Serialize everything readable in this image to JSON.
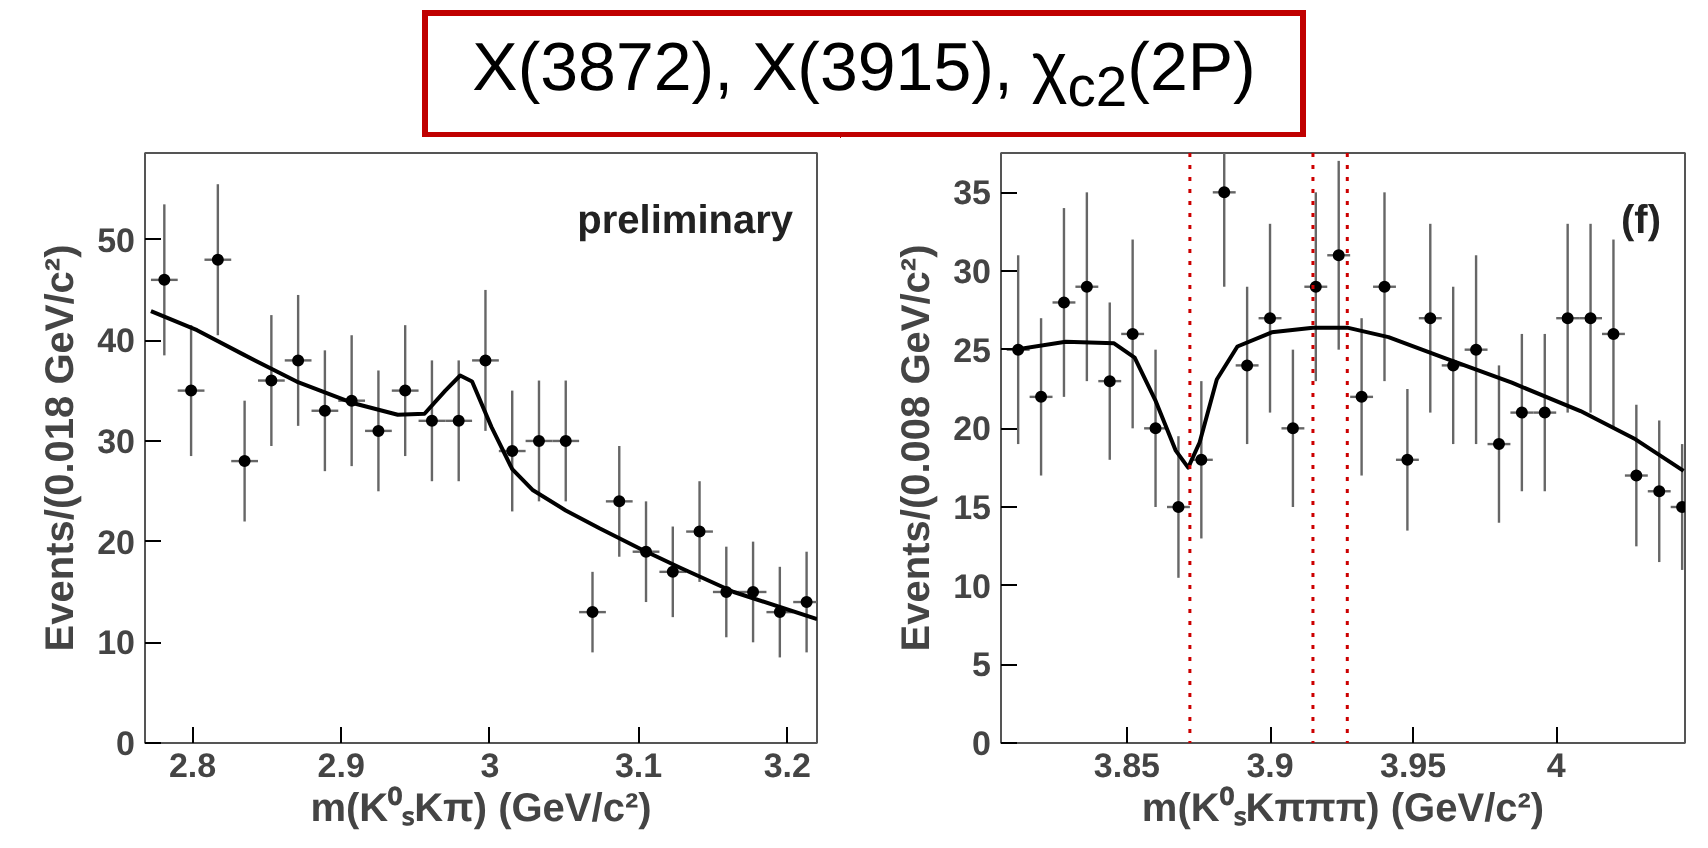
{
  "chart_data": [
    {
      "type": "scatter",
      "title": "X(3872), X(3915), χ$_{c2}$(2P)",
      "xlabel": "m(K⁰ₛKπ) (GeV/c²)",
      "ylabel": "Events/(0.018 GeV/c²)",
      "annotations": [
        "preliminary"
      ],
      "xlim": [
        2.768,
        3.22
      ],
      "ylim": [
        0,
        58.6
      ],
      "xticks": [
        2.8,
        2.9,
        3,
        3.1,
        3.2
      ],
      "yticks": [
        0,
        10,
        20,
        30,
        40,
        50
      ],
      "grid": false,
      "series": [
        {
          "marker": "circle",
          "color": "#000000",
          "x": [
            2.781,
            2.799,
            2.817,
            2.835,
            2.853,
            2.871,
            2.889,
            2.907,
            2.925,
            2.943,
            2.961,
            2.979,
            2.997,
            3.015,
            3.033,
            3.051,
            3.069,
            3.087,
            3.105,
            3.123,
            3.141,
            3.159,
            3.177,
            3.195,
            3.213
          ],
          "values": [
            46,
            35,
            48,
            28,
            36,
            38,
            33,
            34,
            31,
            35,
            32,
            32,
            38,
            29,
            30,
            30,
            13,
            24,
            19,
            17,
            21,
            15,
            15,
            13,
            14
          ],
          "errors": [
            7.5,
            6.5,
            7.5,
            6,
            6.5,
            6.5,
            6,
            6.5,
            6,
            6.5,
            6,
            6,
            7,
            6,
            6,
            6,
            4,
            5.5,
            5,
            4.5,
            5,
            4.5,
            5,
            4.5,
            5
          ],
          "xerrors": [
            0.009,
            0.009,
            0.009,
            0.009,
            0.009,
            0.009,
            0.009,
            0.009,
            0.009,
            0.009,
            0.009,
            0.009,
            0.009,
            0.009,
            0.009,
            0.009,
            0.009,
            0.009,
            0.009,
            0.009,
            0.009,
            0.009,
            0.009,
            0.009,
            0.009
          ]
        },
        {
          "type": "line",
          "color": "#000000",
          "x": [
            2.772,
            2.803,
            2.834,
            2.87,
            2.907,
            2.938,
            2.956,
            2.97,
            2.98,
            2.988,
            3.001,
            3.015,
            3.029,
            3.051,
            3.074,
            3.101,
            3.128,
            3.164,
            3.22
          ],
          "values": [
            42.9,
            41.0,
            38.6,
            35.9,
            33.8,
            32.6,
            32.7,
            35.0,
            36.5,
            35.9,
            31.4,
            27.2,
            25.1,
            23.1,
            21.3,
            19.3,
            17.4,
            15.0,
            12.3
          ]
        }
      ]
    },
    {
      "type": "scatter",
      "xlabel": "m(K⁰ₛKπππ) (GeV/c²)",
      "ylabel": "Events/(0.008 GeV/c²)",
      "annotations": [
        "(f)"
      ],
      "xlim": [
        3.806,
        4.045
      ],
      "ylim": [
        0,
        37.5
      ],
      "xticks": [
        3.85,
        3.9,
        3.95,
        4
      ],
      "yticks": [
        0,
        5,
        10,
        15,
        20,
        25,
        30,
        35
      ],
      "grid": false,
      "ref_lines": [
        {
          "axis": "x",
          "value": 3.872,
          "color": "#cc0000",
          "line_style": "dotted"
        },
        {
          "axis": "x",
          "value": 3.915,
          "color": "#cc0000",
          "line_style": "dotted"
        },
        {
          "axis": "x",
          "value": 3.927,
          "color": "#cc0000",
          "line_style": "dotted"
        }
      ],
      "series": [
        {
          "marker": "circle",
          "color": "#000000",
          "x": [
            3.812,
            3.82,
            3.828,
            3.836,
            3.844,
            3.852,
            3.86,
            3.868,
            3.876,
            3.884,
            3.892,
            3.9,
            3.908,
            3.916,
            3.924,
            3.932,
            3.94,
            3.948,
            3.956,
            3.964,
            3.972,
            3.98,
            3.988,
            3.996,
            4.004,
            4.012,
            4.02,
            4.028,
            4.036,
            4.044
          ],
          "values": [
            25,
            22,
            28,
            29,
            23,
            26,
            20,
            15,
            18,
            35,
            24,
            27,
            20,
            29,
            31,
            22,
            29,
            18,
            27,
            24,
            25,
            19,
            21,
            21,
            27,
            27,
            26,
            17,
            16,
            15
          ],
          "errors": [
            6,
            5,
            6,
            6,
            5,
            6,
            5,
            4.5,
            5,
            6,
            5,
            6,
            5,
            6,
            6,
            5,
            6,
            4.5,
            6,
            5,
            6,
            5,
            5,
            5,
            6,
            6,
            6,
            4.5,
            4.5,
            4
          ],
          "xerrors": [
            0.004,
            0.004,
            0.004,
            0.004,
            0.004,
            0.004,
            0.004,
            0.004,
            0.004,
            0.004,
            0.004,
            0.004,
            0.004,
            0.004,
            0.004,
            0.004,
            0.004,
            0.004,
            0.004,
            0.004,
            0.004,
            0.004,
            0.004,
            0.004,
            0.004,
            0.004,
            0.004,
            0.004,
            0.004,
            0.004
          ]
        },
        {
          "type": "line",
          "color": "#000000",
          "x": [
            3.8107,
            3.8286,
            3.8455,
            3.8527,
            3.8599,
            3.867,
            3.8714,
            3.8754,
            3.8814,
            3.8886,
            3.9006,
            3.915,
            3.927,
            3.9414,
            3.9606,
            3.9845,
            4.0085,
            4.0277,
            4.0445
          ],
          "values": [
            25.0,
            25.5,
            25.4,
            24.5,
            21.8,
            18.6,
            17.5,
            19.1,
            23.1,
            25.2,
            26.1,
            26.4,
            26.4,
            25.8,
            24.5,
            22.9,
            21.1,
            19.3,
            17.3
          ]
        }
      ]
    }
  ]
}
